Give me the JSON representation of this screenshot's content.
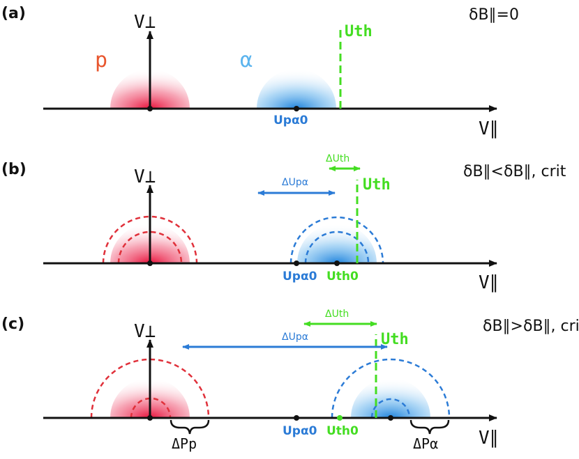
{
  "colors": {
    "axis": "#111111",
    "proton": "#e0303a",
    "alpha": "#2b7bd6",
    "threshold": "#44dd22",
    "text": "#111111"
  },
  "panels": [
    {
      "tag": "(a)",
      "condition": "δB∥=0",
      "y_axis_label": "V⊥",
      "x_axis_label": "V∥",
      "species_p": "p",
      "species_alpha": "α",
      "u_th": "Uth",
      "u_pa0": "Upα0"
    },
    {
      "tag": "(b)",
      "condition": "δB∥<δB∥, crit",
      "y_axis_label": "V⊥",
      "x_axis_label": "V∥",
      "u_th": "Uth",
      "delta_u_th": "ΔUth",
      "delta_u_pa": "ΔUpα",
      "u_pa0": "Upα0",
      "u_th0": "Uth0"
    },
    {
      "tag": "(c)",
      "condition": "δB∥>δB∥, crit",
      "y_axis_label": "V⊥",
      "x_axis_label": "V∥",
      "u_th": "Uth",
      "delta_u_th": "ΔUth",
      "delta_u_pa": "ΔUpα",
      "u_pa0": "Upα0",
      "u_th0": "Uth0",
      "delta_p_p": "ΔPp",
      "delta_p_alpha": "ΔPα"
    }
  ]
}
